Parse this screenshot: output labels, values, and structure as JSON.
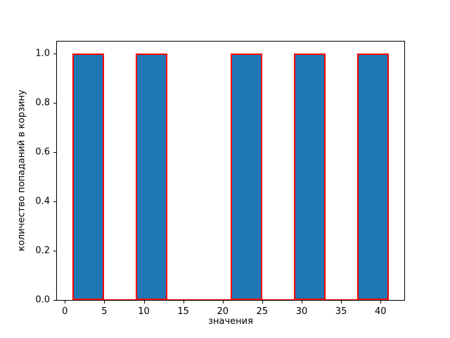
{
  "chart_data": {
    "type": "bar",
    "subtype": "histogram",
    "title": "",
    "xlabel": "значения",
    "ylabel": "количество попаданий в корзину",
    "bin_edges": [
      1,
      5,
      9,
      13,
      17,
      21,
      25,
      29,
      33,
      37,
      41
    ],
    "counts": [
      1,
      0,
      1,
      0,
      0,
      1,
      0,
      1,
      0,
      1
    ],
    "xlim": [
      -1,
      43
    ],
    "ylim": [
      0,
      1.05
    ],
    "xticks": [
      {
        "label": "0",
        "value": 0
      },
      {
        "label": "5",
        "value": 5
      },
      {
        "label": "10",
        "value": 10
      },
      {
        "label": "15",
        "value": 15
      },
      {
        "label": "20",
        "value": 20
      },
      {
        "label": "25",
        "value": 25
      },
      {
        "label": "30",
        "value": 30
      },
      {
        "label": "35",
        "value": 35
      },
      {
        "label": "40",
        "value": 40
      }
    ],
    "yticks": [
      {
        "label": "0.0",
        "value": 0.0
      },
      {
        "label": "0.2",
        "value": 0.2
      },
      {
        "label": "0.4",
        "value": 0.4
      },
      {
        "label": "0.6",
        "value": 0.6
      },
      {
        "label": "0.8",
        "value": 0.8
      },
      {
        "label": "1.0",
        "value": 1.0
      }
    ],
    "bar_fill_color": "#1f77b4",
    "bar_edge_color": "#ff0000",
    "spine_color": "#000000",
    "background_color": "#ffffff",
    "grid": false,
    "legend": null
  }
}
